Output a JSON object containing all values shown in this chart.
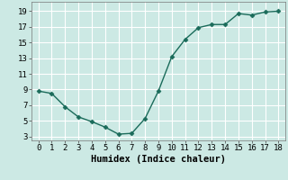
{
  "x": [
    0,
    1,
    2,
    3,
    4,
    5,
    6,
    7,
    8,
    9,
    10,
    11,
    12,
    13,
    14,
    15,
    16,
    17,
    18
  ],
  "y": [
    8.8,
    8.5,
    6.8,
    5.5,
    4.9,
    4.2,
    3.3,
    3.4,
    5.3,
    8.8,
    13.2,
    15.4,
    16.9,
    17.3,
    17.3,
    18.7,
    18.5,
    18.9,
    19.0
  ],
  "line_color": "#1a6b5a",
  "marker": "D",
  "marker_size": 2.5,
  "background_color": "#cce9e4",
  "grid_color": "#ffffff",
  "xlabel": "Humidex (Indice chaleur)",
  "xlim": [
    -0.5,
    18.5
  ],
  "ylim": [
    2.5,
    20.2
  ],
  "yticks": [
    3,
    5,
    7,
    9,
    11,
    13,
    15,
    17,
    19
  ],
  "xticks": [
    0,
    1,
    2,
    3,
    4,
    5,
    6,
    7,
    8,
    9,
    10,
    11,
    12,
    13,
    14,
    15,
    16,
    17,
    18
  ],
  "label_fontsize": 7.5,
  "tick_fontsize": 6.5
}
